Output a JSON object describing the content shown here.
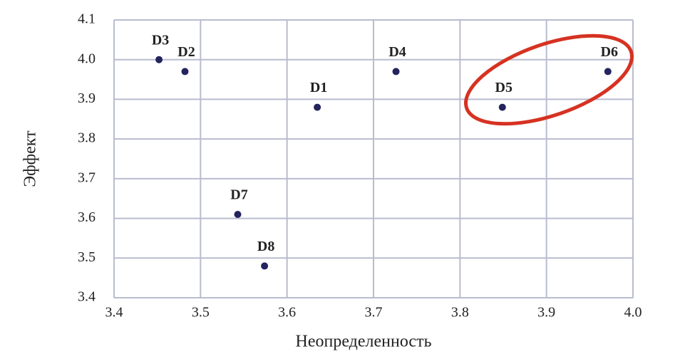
{
  "chart_data": {
    "type": "scatter",
    "x_label": "Неопределенность",
    "y_label": "Эффект",
    "labels": [
      "D1",
      "D2",
      "D3",
      "D4",
      "D5",
      "D6",
      "D7",
      "D8"
    ],
    "x": [
      3.635,
      3.482,
      3.452,
      3.726,
      3.849,
      3.971,
      3.543,
      3.574
    ],
    "values": [
      3.88,
      3.97,
      4.0,
      3.97,
      3.88,
      3.97,
      3.61,
      3.48
    ],
    "color": "#23235e",
    "xlim": [
      3.4,
      4.0
    ],
    "xticks": [
      3.4,
      3.5,
      3.6,
      3.7,
      3.8,
      3.9,
      {
        "value": 4.0,
        "label": "4.0"
      }
    ],
    "ylim": [
      3.4,
      4.1
    ],
    "yticks": [
      3.4,
      3.5,
      3.6,
      3.7,
      3.8,
      3.9,
      {
        "value": 4.0,
        "label": "4.0"
      },
      4.1
    ],
    "grid": true
  }
}
